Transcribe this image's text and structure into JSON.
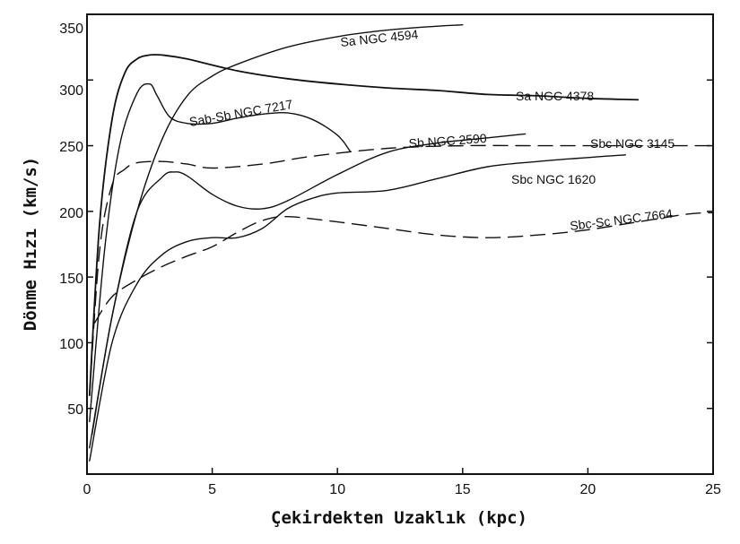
{
  "chart_data": {
    "type": "line",
    "title": "",
    "xlabel": "Çekirdekten Uzaklık (kpc)",
    "ylabel": "Dönme Hızı (km/s)",
    "xlim": [
      0,
      25
    ],
    "ylim": [
      0,
      350
    ],
    "xticks": [
      0,
      5,
      10,
      15,
      20,
      25
    ],
    "yticks": [
      50,
      100,
      150,
      200,
      250,
      300,
      350
    ],
    "grid": false,
    "series": [
      {
        "name": "Sa NGC 4594",
        "style": "solid",
        "x": [
          0.2,
          1,
          2,
          3,
          4,
          5,
          6,
          8,
          10,
          12,
          14,
          15
        ],
        "y": [
          30,
          120,
          200,
          255,
          288,
          303,
          312,
          325,
          333,
          338,
          341,
          342
        ]
      },
      {
        "name": "Sa NGC 4378",
        "style": "solid",
        "x": [
          0.1,
          0.5,
          1,
          1.5,
          2,
          2.5,
          3,
          4,
          6,
          8,
          10,
          12,
          14,
          16,
          18,
          20,
          22
        ],
        "y": [
          60,
          190,
          270,
          305,
          316,
          319,
          319,
          316,
          307,
          301,
          297,
          294,
          292,
          289,
          288,
          286,
          285
        ]
      },
      {
        "name": "Sab-Sb NGC 7217",
        "style": "solid",
        "x": [
          0.1,
          0.7,
          1.3,
          2,
          2.5,
          2.8,
          3.3,
          4,
          5,
          6,
          7,
          8,
          9,
          10,
          10.5
        ],
        "y": [
          40,
          170,
          250,
          290,
          297,
          288,
          272,
          267,
          267,
          271,
          274,
          275,
          270,
          258,
          246
        ]
      },
      {
        "name": "Sb NGC 2590",
        "style": "solid",
        "x": [
          0.1,
          1,
          2,
          3,
          3.5,
          4,
          5,
          6,
          7,
          8,
          10,
          12,
          14,
          16,
          17.5
        ],
        "y": [
          20,
          120,
          200,
          226,
          230,
          227,
          213,
          204,
          202,
          208,
          228,
          245,
          252,
          256,
          259
        ]
      },
      {
        "name": "Sbc NGC 3145",
        "style": "dashed",
        "x": [
          0.1,
          0.5,
          1,
          1.5,
          2,
          3,
          4,
          5,
          7,
          9,
          12,
          15,
          18,
          21,
          23,
          25
        ],
        "y": [
          60,
          170,
          220,
          232,
          237,
          238,
          236,
          233,
          236,
          242,
          248,
          250,
          250,
          250,
          250,
          250
        ]
      },
      {
        "name": "Sbc NGC 1620",
        "style": "solid",
        "x": [
          0.1,
          1,
          2,
          3,
          4,
          5,
          6,
          7,
          8,
          9,
          10,
          12,
          14,
          16,
          18,
          20,
          21.5
        ],
        "y": [
          10,
          100,
          145,
          167,
          177,
          180,
          180,
          187,
          202,
          210,
          214,
          216,
          225,
          234,
          238,
          241,
          243
        ]
      },
      {
        "name": "Sbc-Sc NGC 7664",
        "style": "dashed",
        "x": [
          0.3,
          1,
          2,
          3,
          4,
          5,
          6,
          7,
          8,
          10,
          12,
          14,
          16,
          18,
          20,
          22,
          24,
          25
        ],
        "y": [
          115,
          135,
          148,
          158,
          166,
          173,
          184,
          193,
          196,
          192,
          187,
          182,
          180,
          182,
          186,
          192,
          198,
          199
        ]
      }
    ]
  },
  "ui": {
    "x_tick_labels": [
      "0",
      "5",
      "10",
      "15",
      "20",
      "25"
    ],
    "y_tick_labels": [
      "50",
      "100",
      "150",
      "200",
      "250",
      "300",
      "350"
    ],
    "curve_labels": [
      "Sa  NGC 4594",
      "Sa  NGC 4378",
      "Sab-Sb  NGC 7217",
      "Sb  NGC 2590",
      "Sbc  NGC 3145",
      "Sbc  NGC 1620",
      "Sbc-Sc NGC 7664"
    ]
  }
}
